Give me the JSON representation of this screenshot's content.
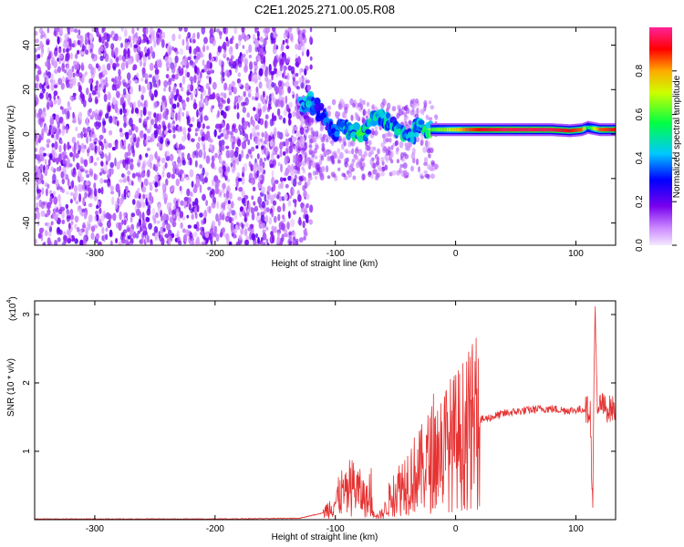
{
  "title": "C2E1.2025.271.00.05.R08",
  "colorbar": {
    "label": "Normalized spectral amplitude",
    "ticks": [
      {
        "v": 0.0,
        "label": "0.0"
      },
      {
        "v": 0.2,
        "label": "0.2"
      },
      {
        "v": 0.4,
        "label": "0.4"
      },
      {
        "v": 0.6,
        "label": "0.6"
      },
      {
        "v": 0.8,
        "label": "0.8"
      }
    ]
  },
  "chart_data": [
    {
      "type": "heatmap",
      "xlabel": "Height of straight line (km)",
      "ylabel": "Frequency (Hz)",
      "xlim": [
        -350,
        133
      ],
      "ylim": [
        -50,
        48
      ],
      "xticks": [
        {
          "v": -300,
          "label": "-300"
        },
        {
          "v": -200,
          "label": "-200"
        },
        {
          "v": -100,
          "label": "-100"
        },
        {
          "v": 0,
          "label": "0"
        },
        {
          "v": 100,
          "label": "100"
        }
      ],
      "yticks": [
        {
          "v": -40,
          "label": "-40"
        },
        {
          "v": -20,
          "label": "-20"
        },
        {
          "v": 0,
          "label": "0"
        },
        {
          "v": 20,
          "label": "20"
        },
        {
          "v": 40,
          "label": "40"
        }
      ],
      "zlim": [
        0,
        1
      ],
      "grid": false,
      "noise_region_x": [
        -350,
        -120
      ],
      "signal_trace": [
        {
          "x": -128,
          "y": 13,
          "z": 0.35
        },
        {
          "x": -122,
          "y": 15,
          "z": 0.45
        },
        {
          "x": -115,
          "y": 12,
          "z": 0.4
        },
        {
          "x": -110,
          "y": 8,
          "z": 0.3
        },
        {
          "x": -105,
          "y": 3,
          "z": 0.35
        },
        {
          "x": -100,
          "y": 0,
          "z": 0.4
        },
        {
          "x": -95,
          "y": 4,
          "z": 0.4
        },
        {
          "x": -90,
          "y": 2,
          "z": 0.45
        },
        {
          "x": -85,
          "y": 0,
          "z": 0.5
        },
        {
          "x": -80,
          "y": 1,
          "z": 0.5
        },
        {
          "x": -75,
          "y": 0,
          "z": 0.5
        },
        {
          "x": -68,
          "y": 7,
          "z": 0.45
        },
        {
          "x": -62,
          "y": 8,
          "z": 0.45
        },
        {
          "x": -55,
          "y": 5,
          "z": 0.45
        },
        {
          "x": -50,
          "y": 3,
          "z": 0.4
        },
        {
          "x": -45,
          "y": 1,
          "z": 0.45
        },
        {
          "x": -40,
          "y": -2,
          "z": 0.4
        },
        {
          "x": -35,
          "y": 0,
          "z": 0.45
        },
        {
          "x": -30,
          "y": 5,
          "z": 0.45
        },
        {
          "x": -25,
          "y": 2,
          "z": 0.5
        },
        {
          "x": -20,
          "y": 2,
          "z": 0.6
        },
        {
          "x": -10,
          "y": 2,
          "z": 0.65
        },
        {
          "x": 0,
          "y": 2,
          "z": 0.75
        },
        {
          "x": 10,
          "y": 2,
          "z": 0.85
        },
        {
          "x": 20,
          "y": 2,
          "z": 0.9
        },
        {
          "x": 40,
          "y": 2,
          "z": 0.95
        },
        {
          "x": 60,
          "y": 2,
          "z": 0.95
        },
        {
          "x": 80,
          "y": 2,
          "z": 0.95
        },
        {
          "x": 95,
          "y": 1.5,
          "z": 0.9
        },
        {
          "x": 105,
          "y": 2,
          "z": 0.85
        },
        {
          "x": 110,
          "y": 3,
          "z": 0.5
        },
        {
          "x": 120,
          "y": 2,
          "z": 0.85
        },
        {
          "x": 133,
          "y": 2,
          "z": 0.9
        }
      ]
    },
    {
      "type": "line",
      "xlabel": "Height of straight line (km)",
      "ylabel": "SNR (10 * v/v)",
      "y_multiplier_label": "(x10",
      "y_multiplier_exp": "4",
      "y_multiplier_close": ")",
      "xlim": [
        -350,
        133
      ],
      "ylim": [
        0,
        3.2
      ],
      "xticks": [
        {
          "v": -300,
          "label": "-300"
        },
        {
          "v": -200,
          "label": "-200"
        },
        {
          "v": -100,
          "label": "-100"
        },
        {
          "v": 0,
          "label": "0"
        },
        {
          "v": 100,
          "label": "100"
        }
      ],
      "yticks": [
        {
          "v": 1,
          "label": "1"
        },
        {
          "v": 2,
          "label": "2"
        },
        {
          "v": 3,
          "label": "3"
        }
      ],
      "grid": false,
      "color": "#e63232",
      "series": [
        {
          "x": [
            -350,
            -300,
            -200,
            -130,
            -110,
            -100,
            -95,
            -90,
            -85,
            -80,
            -75,
            -70,
            -65,
            -60,
            -55,
            -50,
            -45,
            -40,
            -35,
            -30,
            -25,
            -20,
            -15,
            -10,
            -5,
            0,
            10,
            20,
            30,
            40,
            50,
            60,
            70,
            80,
            90,
            100,
            108,
            112,
            113,
            114,
            115,
            116,
            118,
            120,
            125,
            133
          ],
          "y": [
            0.01,
            0.01,
            0.01,
            0.02,
            0.1,
            0.25,
            0.4,
            0.35,
            0.5,
            0.4,
            0.3,
            0.2,
            0.05,
            0.1,
            0.3,
            0.4,
            0.5,
            0.6,
            0.65,
            0.7,
            0.8,
            0.9,
            1.0,
            1.05,
            1.1,
            1.15,
            1.3,
            1.45,
            1.5,
            1.55,
            1.58,
            1.6,
            1.62,
            1.62,
            1.6,
            1.6,
            1.62,
            1.6,
            0.8,
            0.08,
            2.0,
            3.2,
            1.4,
            1.7,
            1.62,
            1.62
          ]
        }
      ]
    }
  ]
}
